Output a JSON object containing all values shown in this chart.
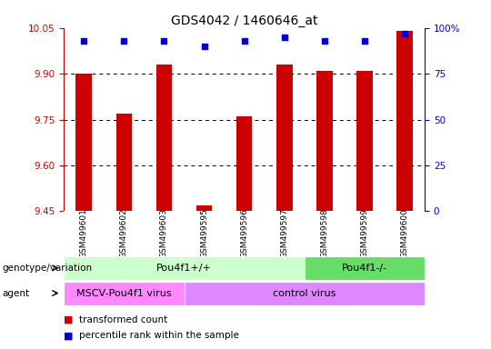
{
  "title": "GDS4042 / 1460646_at",
  "samples": [
    "GSM499601",
    "GSM499602",
    "GSM499603",
    "GSM499595",
    "GSM499596",
    "GSM499597",
    "GSM499598",
    "GSM499599",
    "GSM499600"
  ],
  "transformed_count": [
    9.9,
    9.77,
    9.93,
    9.47,
    9.76,
    9.93,
    9.91,
    9.91,
    10.04
  ],
  "percentile_rank": [
    93,
    93,
    93,
    90,
    93,
    95,
    93,
    93,
    97
  ],
  "ylim_left": [
    9.45,
    10.05
  ],
  "ylim_right": [
    0,
    100
  ],
  "yticks_left": [
    9.45,
    9.6,
    9.75,
    9.9,
    10.05
  ],
  "yticks_right": [
    0,
    25,
    50,
    75,
    100
  ],
  "bar_color": "#cc0000",
  "dot_color": "#0000cc",
  "bar_width": 0.4,
  "genotype_labels": [
    {
      "label": "Pou4f1+/+",
      "start": 0,
      "end": 6,
      "color": "#ccffcc"
    },
    {
      "label": "Pou4f1-/-",
      "start": 6,
      "end": 9,
      "color": "#66dd66"
    }
  ],
  "agent_labels": [
    {
      "label": "MSCV-Pou4f1 virus",
      "start": 0,
      "end": 3,
      "color": "#ff88ff"
    },
    {
      "label": "control virus",
      "start": 3,
      "end": 9,
      "color": "#dd88ff"
    }
  ],
  "legend_items": [
    {
      "color": "#cc0000",
      "label": "transformed count"
    },
    {
      "color": "#0000cc",
      "label": "percentile rank within the sample"
    }
  ],
  "left_axis_color": "#cc0000",
  "right_axis_color": "#0000cc",
  "background_color": "#ffffff",
  "plot_bg_color": "#ffffff",
  "grid_color": "#000000"
}
